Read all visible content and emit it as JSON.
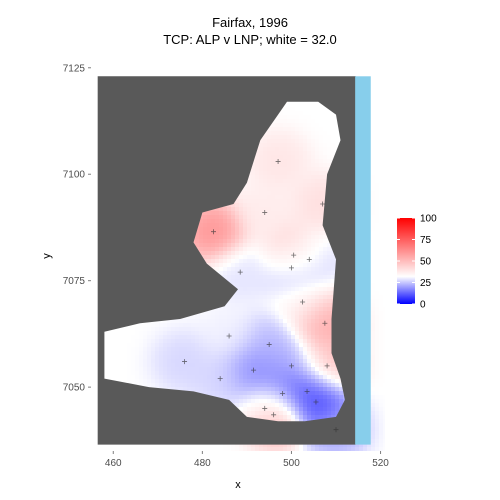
{
  "chart_data": {
    "type": "heatmap",
    "title": "Fairfax, 1996",
    "subtitle": "TCP: ALP v LNP; white = 32.0",
    "xlabel": "x",
    "ylabel": "y",
    "xlim": [
      455,
      521
    ],
    "ylim": [
      7035,
      7128
    ],
    "x_ticks": [
      460,
      480,
      500,
      520
    ],
    "y_ticks": [
      7050,
      7075,
      7100,
      7125
    ],
    "grid": true,
    "legend_position": "right",
    "colors": {
      "panel_background": "#ebebeb",
      "gridline": "#ffffff",
      "land_mask": "#595959",
      "ocean": "#87ceeb",
      "low": "#0000ff",
      "mid": "#ffffff",
      "high": "#ff0000",
      "marker": "#333333"
    },
    "legend": {
      "midpoint": 32.0,
      "limits": [
        0,
        100
      ],
      "breaks": [
        0,
        25,
        50,
        75,
        100
      ],
      "labels": [
        "0",
        "25",
        "50",
        "75",
        "100"
      ]
    },
    "booths": [
      {
        "x": 482.5,
        "y": 7086.5,
        "v": 65
      },
      {
        "x": 496.0,
        "y": 7043.5,
        "v": 70
      },
      {
        "x": 500.5,
        "y": 7081.0,
        "v": 55
      },
      {
        "x": 507.5,
        "y": 7065.0,
        "v": 58
      },
      {
        "x": 508.0,
        "y": 7055.0,
        "v": 52
      },
      {
        "x": 505.5,
        "y": 7046.5,
        "v": 5
      },
      {
        "x": 498.0,
        "y": 7048.5,
        "v": 12
      },
      {
        "x": 491.5,
        "y": 7054.0,
        "v": 15
      },
      {
        "x": 500.0,
        "y": 7078.0,
        "v": 18
      },
      {
        "x": 495.0,
        "y": 7060.0,
        "v": 22
      },
      {
        "x": 488.5,
        "y": 7077.0,
        "v": 28
      },
      {
        "x": 494.0,
        "y": 7091.0,
        "v": 38
      },
      {
        "x": 502.5,
        "y": 7070.0,
        "v": 35
      },
      {
        "x": 486.0,
        "y": 7062.0,
        "v": 30
      },
      {
        "x": 504.0,
        "y": 7080.0,
        "v": 24
      },
      {
        "x": 497.0,
        "y": 7103.0,
        "v": 40
      },
      {
        "x": 510.0,
        "y": 7040.0,
        "v": 20
      },
      {
        "x": 476.0,
        "y": 7056.0,
        "v": 26
      },
      {
        "x": 500.0,
        "y": 7055.0,
        "v": 20
      },
      {
        "x": 494.0,
        "y": 7045.0,
        "v": 22
      },
      {
        "x": 507.0,
        "y": 7093.0,
        "v": 42
      },
      {
        "x": 484.0,
        "y": 7052.0,
        "v": 26
      },
      {
        "x": 503.5,
        "y": 7049.0,
        "v": 8
      }
    ]
  }
}
